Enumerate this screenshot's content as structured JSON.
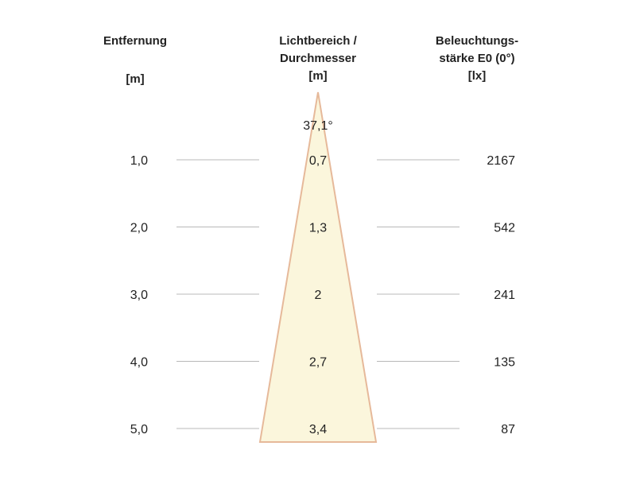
{
  "headers": {
    "distance": {
      "title": "Entfernung",
      "unit": "[m]"
    },
    "beam": {
      "title_line1": "Lichtbereich /",
      "title_line2": "Durchmesser",
      "unit": "[m]"
    },
    "illuminance": {
      "title_line1": "Beleuchtungs-",
      "title_line2": "stärke E0 (0°)",
      "unit": "[lx]"
    }
  },
  "chart_data": {
    "type": "table",
    "beam_angle_label": "37,1°",
    "columns": [
      "Entfernung [m]",
      "Lichtbereich / Durchmesser [m]",
      "Beleuchtungsstärke E0 (0°) [lx]"
    ],
    "rows": [
      {
        "distance": "1,0",
        "diameter": "0,7",
        "lux": "2167"
      },
      {
        "distance": "2,0",
        "diameter": "1,3",
        "lux": "542"
      },
      {
        "distance": "3,0",
        "diameter": "2",
        "lux": "241"
      },
      {
        "distance": "4,0",
        "diameter": "2,7",
        "lux": "135"
      },
      {
        "distance": "5,0",
        "diameter": "3,4",
        "lux": "87"
      }
    ],
    "colors": {
      "cone_fill": "#fbf6dc",
      "cone_edge": "#e6b99a",
      "guide_line": "#b8b8b8",
      "text": "#222222"
    }
  }
}
